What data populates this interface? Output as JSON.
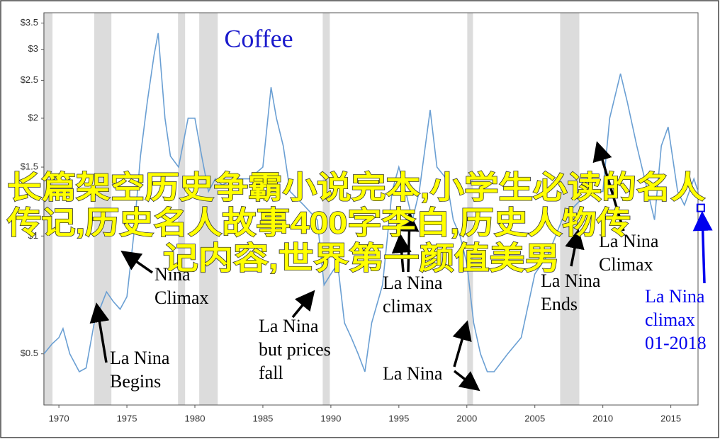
{
  "chart_data": {
    "type": "line",
    "title": "Coffee",
    "color": "#6a9fd3",
    "log_scale": true,
    "x": [
      1968.9,
      1969.5,
      1970.0,
      1970.3,
      1970.8,
      1971.5,
      1972.0,
      1972.6,
      1973.0,
      1973.5,
      1974.0,
      1974.5,
      1975.0,
      1975.5,
      1976.0,
      1976.5,
      1977.0,
      1977.3,
      1977.8,
      1978.2,
      1978.8,
      1979.5,
      1980.0,
      1980.5,
      1981.0,
      1981.5,
      1982.0,
      1983.0,
      1984.0,
      1985.0,
      1985.6,
      1986.0,
      1986.5,
      1987.0,
      1988.0,
      1989.0,
      1989.5,
      1990.0,
      1990.5,
      1991.0,
      1991.5,
      1992.0,
      1992.5,
      1993.0,
      1993.8,
      1994.5,
      1995.0,
      1995.5,
      1996.0,
      1996.5,
      1997.3,
      1997.8,
      1998.5,
      1999.0,
      1999.5,
      2000.0,
      2000.5,
      2001.0,
      2001.5,
      2002.0,
      2003.0,
      2004.0,
      2005.0,
      2006.0,
      2007.0,
      2008.0,
      2009.0,
      2010.0,
      2010.5,
      2011.3,
      2011.8,
      2012.5,
      2013.3,
      2013.8,
      2014.3,
      2014.8,
      2015.5,
      2016.0,
      2016.7,
      2017.0
    ],
    "values": [
      0.5,
      0.53,
      0.55,
      0.58,
      0.5,
      0.45,
      0.46,
      0.6,
      0.65,
      0.72,
      0.68,
      0.65,
      0.7,
      1.0,
      1.6,
      2.2,
      2.9,
      3.3,
      2.0,
      1.6,
      1.5,
      2.0,
      2.0,
      1.6,
      1.3,
      1.4,
      1.35,
      1.4,
      1.4,
      1.5,
      2.4,
      2.0,
      1.7,
      1.3,
      1.2,
      1.1,
      0.75,
      0.8,
      0.85,
      0.6,
      0.55,
      0.5,
      0.45,
      0.6,
      0.75,
      1.3,
      1.5,
      1.3,
      1.1,
      1.3,
      2.1,
      1.5,
      1.4,
      1.1,
      1.0,
      0.85,
      0.6,
      0.5,
      0.45,
      0.45,
      0.5,
      0.55,
      0.8,
      0.9,
      1.1,
      1.2,
      1.3,
      1.3,
      2.0,
      2.6,
      2.2,
      1.7,
      1.3,
      1.1,
      1.7,
      1.9,
      1.3,
      1.2,
      1.4,
      1.3
    ],
    "xlim": [
      1968.9,
      2017.0
    ],
    "ylim": [
      0.37,
      3.72
    ],
    "xticks": [
      1970,
      1975,
      1980,
      1985,
      1990,
      1995,
      2000,
      2005,
      2010,
      2015
    ],
    "yticks": [
      {
        "value": 0.5,
        "label": "$0.5"
      },
      {
        "value": 1,
        "label": "$1"
      },
      {
        "value": 1.5,
        "label": "$1.5"
      },
      {
        "value": 2,
        "label": "$2"
      },
      {
        "value": 2.5,
        "label": "$2.5"
      },
      {
        "value": 3,
        "label": "$3"
      },
      {
        "value": 3.5,
        "label": "$3.5"
      }
    ],
    "shaded_regions": [
      [
        1968.85,
        1969.53
      ],
      [
        1972.6,
        1973.86
      ],
      [
        1978.76,
        1979.28
      ],
      [
        1980.32,
        1981.68
      ],
      [
        1989.4,
        1989.92
      ],
      [
        2000.03,
        2000.45
      ],
      [
        2006.86,
        2008.27
      ]
    ],
    "marker": {
      "x": 2017.2,
      "value": 1.18,
      "color": "#0000ee"
    },
    "annotations": [
      {
        "lines": [
          "Nina",
          "Climax"
        ]
      },
      {
        "lines": [
          "La Nina",
          "Begins"
        ]
      },
      {
        "lines": [
          "La Nina",
          "but prices",
          "fall"
        ]
      },
      {
        "lines": [
          "La Nina",
          "climax"
        ]
      },
      {
        "lines": [
          "La Nina"
        ]
      },
      {
        "lines": [
          "La Nina",
          "Ends"
        ]
      },
      {
        "lines": [
          "La Nina",
          "Climax"
        ]
      },
      {
        "lines": [
          "La Nina",
          "climax",
          "01-2018"
        ],
        "color": "#0000ee"
      }
    ]
  },
  "overlay_text": [
    "长篇架空历史争霸小说完本,小学生必读的名人",
    "传记,历史名人故事400字李白,历史人物传",
    "记内容,世界第一颜值美男"
  ]
}
